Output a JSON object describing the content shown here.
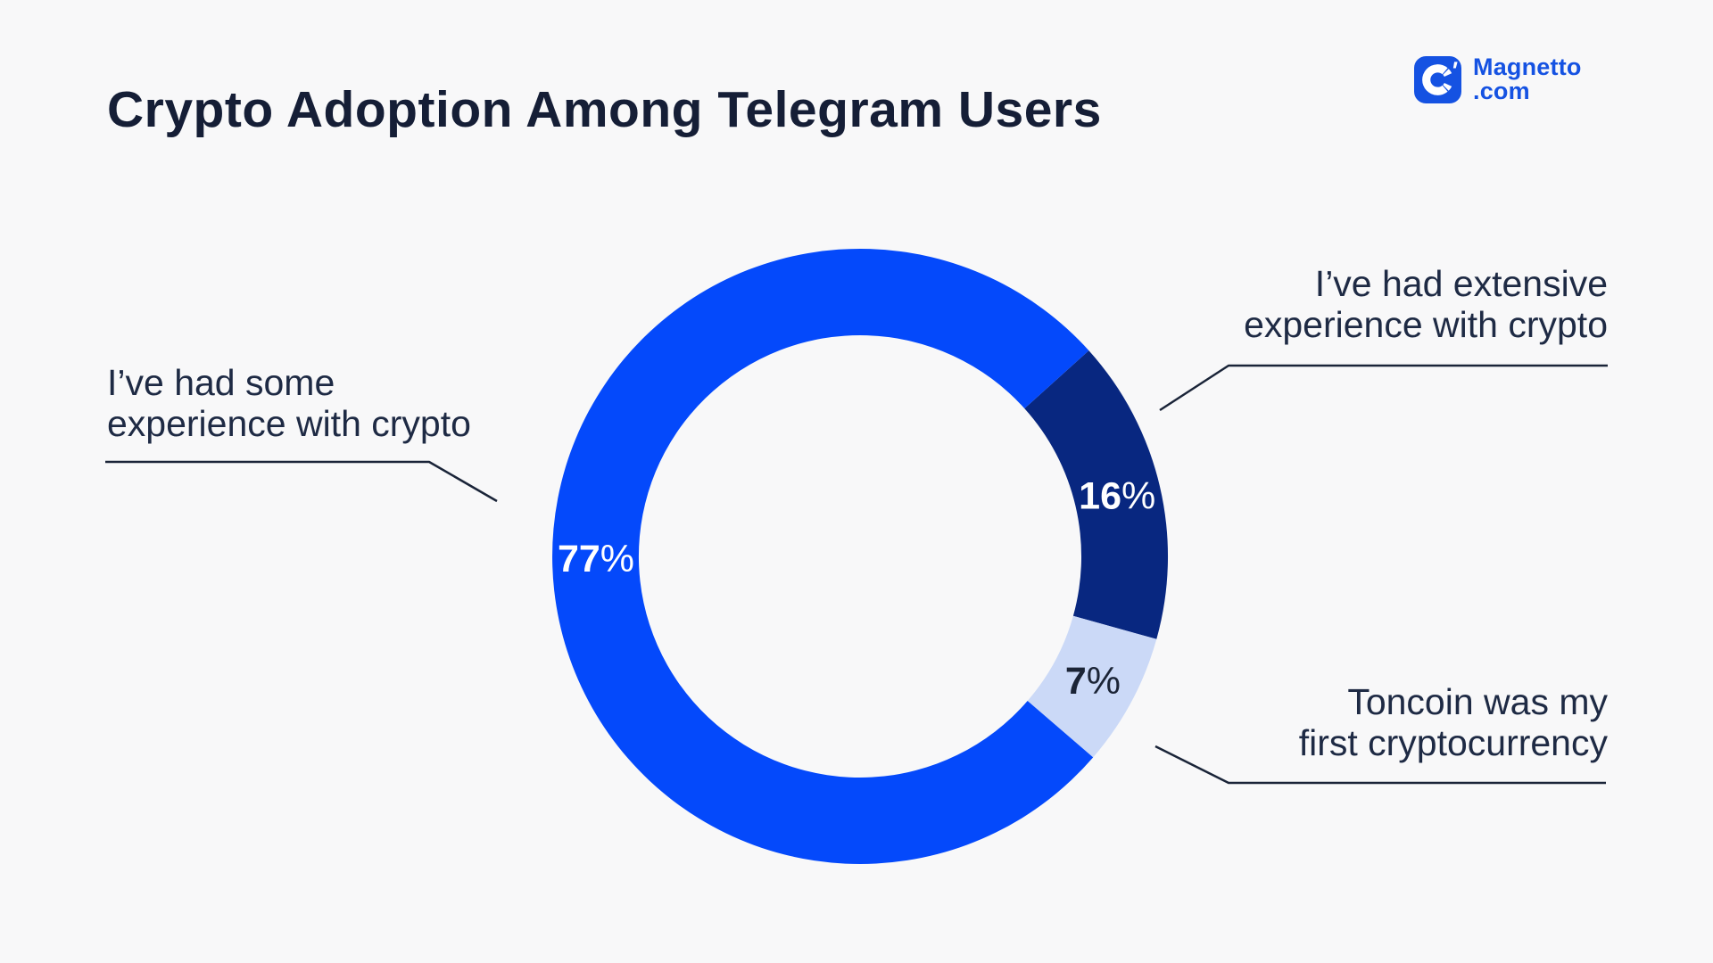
{
  "page": {
    "background_color": "#f8f8f9"
  },
  "header": {
    "title": "Crypto Adoption Among Telegram Users",
    "logo": {
      "brand": "Magnetto",
      "suffix": ".com",
      "color": "#1552e2",
      "icon": "magnet-icon"
    }
  },
  "chart_data": {
    "type": "pie",
    "subtype": "donut",
    "title": "Crypto Adoption Among Telegram Users",
    "unit": "%",
    "start_angle_deg": 48,
    "direction": "clockwise",
    "legend_position": "callout-labels",
    "slices": [
      {
        "label": "I’ve had extensive experience with crypto",
        "value": 16,
        "value_label": "16%",
        "color": "#082780",
        "value_label_color": "#ffffff"
      },
      {
        "label": "Toncoin was my first cryptocurrency",
        "value": 7,
        "value_label": "7%",
        "color": "#cbd9f7",
        "value_label_color": "#1b2436"
      },
      {
        "label": "I’ve had some experience with crypto",
        "value": 77,
        "value_label": "77%",
        "color": "#0449fb",
        "value_label_color": "#ffffff"
      }
    ]
  },
  "callouts": [
    {
      "id": "some-experience",
      "lines": [
        "I’ve had some",
        "experience with crypto"
      ]
    },
    {
      "id": "extensive-experience",
      "lines": [
        "I’ve had extensive",
        "experience with crypto"
      ]
    },
    {
      "id": "toncoin-first",
      "lines": [
        "Toncoin was my",
        "first cryptocurrency"
      ]
    }
  ]
}
